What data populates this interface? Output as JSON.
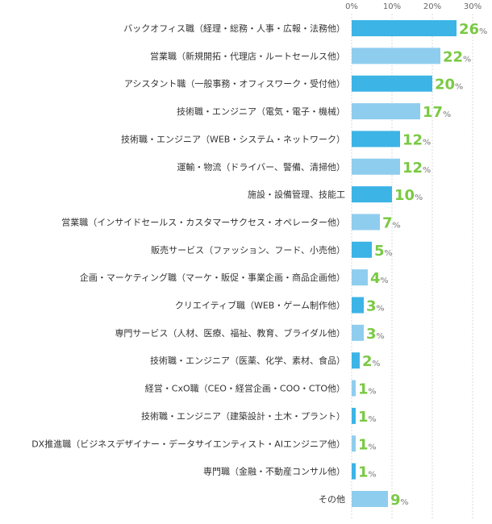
{
  "chart_data": {
    "type": "bar",
    "orientation": "horizontal",
    "xlim": [
      0,
      30
    ],
    "tick_values": [
      0,
      10,
      20,
      30
    ],
    "tick_labels": [
      "0%",
      "10%",
      "20%",
      "30%"
    ],
    "grid": true,
    "value_unit": "%",
    "colors": {
      "bar_dark": "#3cb4e6",
      "bar_light": "#8fcdee",
      "value_label": "#7ac943",
      "grid": "#d9d9d9"
    },
    "categories": [
      "バックオフィス職（経理・総務・人事・広報・法務他）",
      "営業職（新規開拓・代理店・ルートセールス他）",
      "アシスタント職（一般事務・オフィスワーク・受付他）",
      "技術職・エンジニア（電気・電子・機械）",
      "技術職・エンジニア（WEB・システム・ネットワーク）",
      "運輸・物流（ドライバー、警備、清掃他）",
      "施設・設備管理、技能工",
      "営業職（インサイドセールス・カスタマーサクセス・オペレーター他）",
      "販売サービス（ファッション、フード、小売他）",
      "企画・マーケティング職（マーケ・販促・事業企画・商品企画他）",
      "クリエイティブ職（WEB・ゲーム制作他）",
      "専門サービス（人材、医療、福祉、教育、ブライダル他）",
      "技術職・エンジニア（医薬、化学、素材、食品）",
      "経営・CxO職（CEO・経営企画・COO・CTO他）",
      "技術職・エンジニア（建築設計・土木・プラント）",
      "DX推進職（ビジネスデザイナー・データサイエンティスト・AIエンジニア他）",
      "専門職（金融・不動産コンサル他）",
      "その他"
    ],
    "values": [
      26,
      22,
      20,
      17,
      12,
      12,
      10,
      7,
      5,
      4,
      3,
      3,
      2,
      1,
      1,
      1,
      1,
      9
    ]
  }
}
